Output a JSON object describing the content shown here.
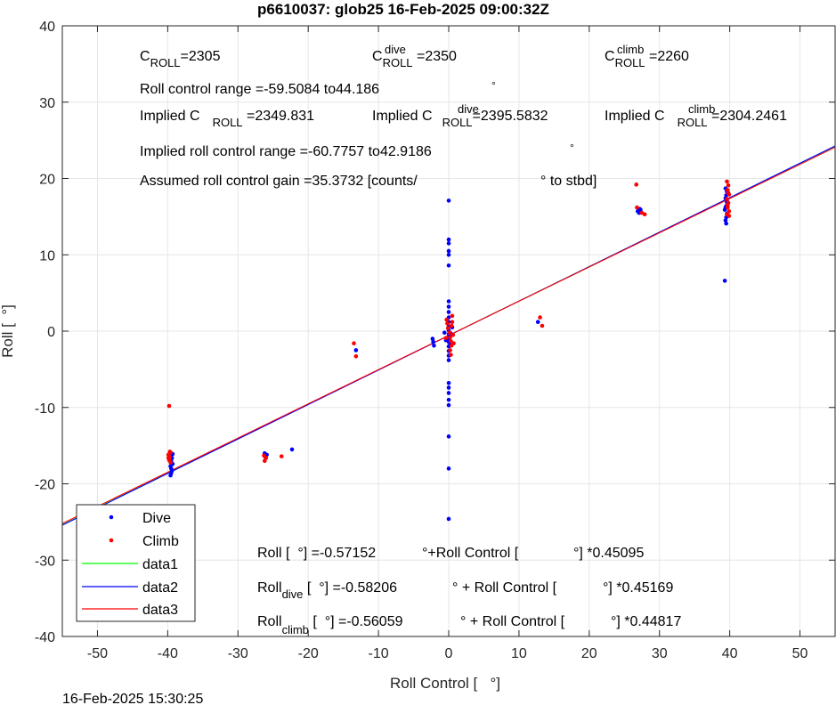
{
  "chart_data": {
    "type": "scatter",
    "title": "p6610037: glob25 16-Feb-2025 09:00:32Z",
    "xlabel": "Roll Control [   °]",
    "ylabel": "Roll [  °]",
    "xlim": [
      -55,
      55
    ],
    "ylim": [
      -40,
      40
    ],
    "xticks": [
      -50,
      -40,
      -30,
      -20,
      -10,
      0,
      10,
      20,
      30,
      40,
      50
    ],
    "yticks": [
      -40,
      -30,
      -20,
      -10,
      0,
      10,
      20,
      30,
      40
    ],
    "xtick_labels": [
      "-50",
      "-40",
      "-30",
      "-20",
      "-10",
      "0",
      "10",
      "20",
      "30",
      "40",
      "50"
    ],
    "ytick_labels": [
      "-40",
      "-30",
      "-20",
      "-10",
      "0",
      "10",
      "20",
      "30",
      "40"
    ],
    "grid": true,
    "legend_position": "bottom-left",
    "timestamp": "16-Feb-2025 15:30:25",
    "series": [
      {
        "name": "Dive",
        "kind": "points",
        "color": "#0000ff",
        "points": [
          [
            -39.5,
            -16.0
          ],
          [
            -39.6,
            -16.3
          ],
          [
            -39.4,
            -16.6
          ],
          [
            -39.5,
            -17.0
          ],
          [
            -39.3,
            -17.4
          ],
          [
            -39.6,
            -17.7
          ],
          [
            -39.5,
            -18.0
          ],
          [
            -39.4,
            -18.3
          ],
          [
            -39.5,
            -18.6
          ],
          [
            -39.6,
            -18.9
          ],
          [
            -39.3,
            -16.1
          ],
          [
            -39.5,
            -16.8
          ],
          [
            -26.2,
            -16.0
          ],
          [
            -25.9,
            -16.2
          ],
          [
            -26.1,
            -16.5
          ],
          [
            -22.3,
            -15.5
          ],
          [
            -13.2,
            -2.5
          ],
          [
            -2.3,
            -1.0
          ],
          [
            -2.2,
            -1.4
          ],
          [
            -2.1,
            -1.9
          ],
          [
            -0.6,
            -0.2
          ],
          [
            -0.4,
            -1.2
          ],
          [
            0.0,
            17.1
          ],
          [
            0.0,
            12.0
          ],
          [
            0.0,
            11.5
          ],
          [
            0.0,
            10.5
          ],
          [
            0.0,
            10.0
          ],
          [
            0.0,
            8.6
          ],
          [
            0.0,
            3.9
          ],
          [
            0.0,
            3.2
          ],
          [
            0.0,
            2.5
          ],
          [
            0.0,
            1.8
          ],
          [
            0.0,
            1.2
          ],
          [
            0.0,
            0.6
          ],
          [
            0.0,
            0.1
          ],
          [
            0.0,
            -0.4
          ],
          [
            0.0,
            -0.9
          ],
          [
            0.0,
            -1.4
          ],
          [
            0.0,
            -2.0
          ],
          [
            0.0,
            -2.6
          ],
          [
            0.0,
            -3.2
          ],
          [
            0.0,
            -3.8
          ],
          [
            0.0,
            -6.8
          ],
          [
            0.0,
            -7.4
          ],
          [
            0.0,
            -8.1
          ],
          [
            0.0,
            -9.0
          ],
          [
            0.0,
            -9.7
          ],
          [
            0.0,
            -13.8
          ],
          [
            0.0,
            -18.0
          ],
          [
            0.0,
            -24.6
          ],
          [
            0.3,
            -0.3
          ],
          [
            0.5,
            0.5
          ],
          [
            0.2,
            -1.8
          ],
          [
            12.7,
            1.2
          ],
          [
            26.9,
            15.7
          ],
          [
            27.2,
            16.0
          ],
          [
            27.1,
            15.5
          ],
          [
            27.3,
            15.9
          ],
          [
            39.4,
            18.7
          ],
          [
            39.6,
            18.3
          ],
          [
            39.5,
            17.8
          ],
          [
            39.4,
            17.4
          ],
          [
            39.6,
            16.9
          ],
          [
            39.5,
            16.4
          ],
          [
            39.3,
            15.9
          ],
          [
            39.6,
            15.4
          ],
          [
            39.5,
            14.9
          ],
          [
            39.4,
            14.5
          ],
          [
            39.5,
            14.1
          ],
          [
            39.3,
            6.6
          ],
          [
            39.6,
            17.1
          ],
          [
            39.4,
            16.2
          ]
        ]
      },
      {
        "name": "Climb",
        "kind": "points",
        "color": "#ff0000",
        "points": [
          [
            -39.8,
            -9.8
          ],
          [
            -39.6,
            -15.9
          ],
          [
            -39.9,
            -16.2
          ],
          [
            -39.7,
            -16.5
          ],
          [
            -39.8,
            -16.9
          ],
          [
            -39.6,
            -17.2
          ],
          [
            -39.9,
            -16.6
          ],
          [
            -39.7,
            -15.8
          ],
          [
            -26.3,
            -16.3
          ],
          [
            -26.0,
            -16.6
          ],
          [
            -26.2,
            -17.0
          ],
          [
            -23.8,
            -16.4
          ],
          [
            -13.5,
            -1.6
          ],
          [
            -13.2,
            -3.3
          ],
          [
            -0.3,
            1.5
          ],
          [
            -0.2,
            1.0
          ],
          [
            -0.1,
            0.4
          ],
          [
            0.1,
            -0.2
          ],
          [
            0.2,
            -0.8
          ],
          [
            0.3,
            -1.3
          ],
          [
            0.4,
            -1.9
          ],
          [
            0.2,
            -2.5
          ],
          [
            0.3,
            -3.1
          ],
          [
            0.5,
            2.0
          ],
          [
            0.4,
            0.7
          ],
          [
            0.6,
            -0.5
          ],
          [
            0.7,
            -1.6
          ],
          [
            -0.4,
            -0.9
          ],
          [
            0.5,
            1.2
          ],
          [
            13.0,
            1.8
          ],
          [
            13.3,
            0.7
          ],
          [
            26.7,
            19.2
          ],
          [
            26.8,
            16.2
          ],
          [
            27.5,
            15.5
          ],
          [
            27.9,
            15.3
          ],
          [
            39.6,
            19.6
          ],
          [
            39.8,
            19.1
          ],
          [
            39.7,
            18.5
          ],
          [
            39.9,
            17.9
          ],
          [
            39.6,
            17.3
          ],
          [
            39.8,
            16.8
          ],
          [
            39.7,
            16.2
          ],
          [
            39.9,
            15.7
          ],
          [
            39.6,
            15.3
          ],
          [
            39.8,
            18.1
          ],
          [
            39.7,
            16.5
          ],
          [
            39.9,
            15.1
          ]
        ]
      },
      {
        "name": "data1",
        "kind": "line",
        "color": "#00ff00",
        "intercept": -0.57152,
        "slope": 0.45095
      },
      {
        "name": "data2",
        "kind": "line",
        "color": "#0000ff",
        "intercept": -0.58206,
        "slope": 0.45169
      },
      {
        "name": "data3",
        "kind": "line",
        "color": "#ff0000",
        "intercept": -0.56059,
        "slope": 0.44817
      }
    ],
    "annotations": {
      "c_roll": {
        "label": "C",
        "sub": "ROLL",
        "value": "=2305"
      },
      "c_roll_dive": {
        "label": "C",
        "sup": "dive",
        "sub": "ROLL",
        "value": " =2350"
      },
      "c_roll_climb": {
        "label": "C",
        "sup": "climb",
        "sub": "ROLL",
        "value": " =2260"
      },
      "roll_control_range": "Roll control range =-59.5084 to44.186",
      "implied_c_roll": {
        "prefix": "Implied C",
        "sub": "ROLL",
        "value": " =2349.831"
      },
      "implied_c_roll_dive": {
        "prefix": "Implied C",
        "sup": "dive",
        "sub": "ROLL",
        "value": "=2395.5832"
      },
      "implied_c_roll_climb": {
        "prefix": "Implied C",
        "sup": "climb",
        "sub": "ROLL",
        "value": " =2304.2461"
      },
      "implied_roll_control_range": "Implied roll control range =-60.7757 to42.9186",
      "assumed_gain": "Assumed roll control gain =35.3732 [counts/",
      "assumed_gain_suffix": "° to stbd]",
      "degree_mark": "°",
      "fit_all": {
        "a": "Roll [  °] =-0.57152",
        "b": "°+Roll Control [",
        "c": "°] *0.45095"
      },
      "fit_dive": {
        "prefix": "Roll",
        "sub": "dive",
        "a": " [  °] =-0.58206",
        "b": "° + Roll Control [",
        "c": "°] *0.45169"
      },
      "fit_climb": {
        "prefix": "Roll",
        "sub": "climb",
        "a": " [  °] =-0.56059",
        "b": "° + Roll Control [",
        "c": "°] *0.44817"
      }
    }
  }
}
